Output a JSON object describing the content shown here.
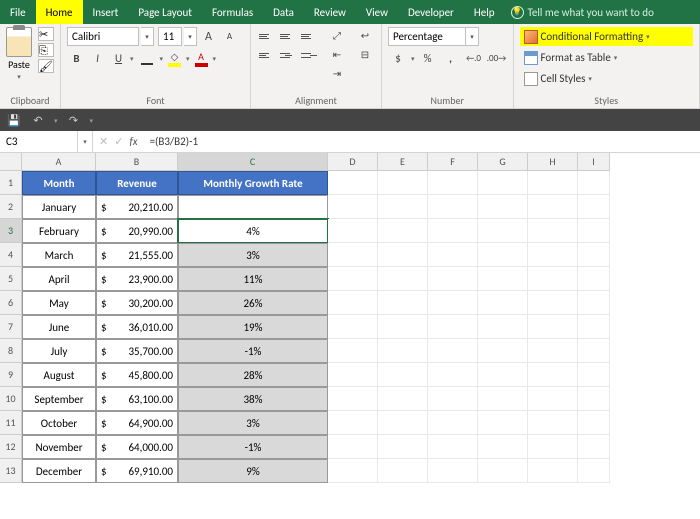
{
  "tabs": [
    "File",
    "Home",
    "Insert",
    "Page Layout",
    "Formulas",
    "Data",
    "Review",
    "View",
    "Developer",
    "Help"
  ],
  "active_tab": "Home",
  "tell_me": "Tell me what you want to do",
  "ribbon": {
    "clipboard": {
      "paste": "Paste",
      "label": "Clipboard"
    },
    "font": {
      "name": "Calibri",
      "size": "11",
      "inc": "A",
      "dec": "A",
      "bold": "B",
      "italic": "I",
      "underline": "U",
      "label": "Font"
    },
    "alignment": {
      "label": "Alignment"
    },
    "number": {
      "format": "Percentage",
      "currency": "$",
      "percent": "%",
      "comma": ",",
      "dec_inc": ".0",
      "dec_dec": ".00",
      "label": "Number"
    },
    "styles": {
      "cond": "Conditional Formatting",
      "table": "Format as Table",
      "cell": "Cell Styles",
      "label": "Styles"
    }
  },
  "name_box": "C3",
  "formula": "=(B3/B2)-1",
  "col_headers": [
    "A",
    "B",
    "C",
    "D",
    "E",
    "F",
    "G",
    "H",
    "I"
  ],
  "row_headers": [
    "1",
    "2",
    "3",
    "4",
    "5",
    "6",
    "7",
    "8",
    "9",
    "10",
    "11",
    "12",
    "13"
  ],
  "table": {
    "headers": [
      "Month",
      "Revenue",
      "Monthly Growth Rate"
    ],
    "currency": "$",
    "rows": [
      {
        "month": "January",
        "revenue": "20,210.00",
        "growth": ""
      },
      {
        "month": "February",
        "revenue": "20,990.00",
        "growth": "4%"
      },
      {
        "month": "March",
        "revenue": "21,555.00",
        "growth": "3%"
      },
      {
        "month": "April",
        "revenue": "23,900.00",
        "growth": "11%"
      },
      {
        "month": "May",
        "revenue": "30,200.00",
        "growth": "26%"
      },
      {
        "month": "June",
        "revenue": "36,010.00",
        "growth": "19%"
      },
      {
        "month": "July",
        "revenue": "35,700.00",
        "growth": "-1%"
      },
      {
        "month": "August",
        "revenue": "45,800.00",
        "growth": "28%"
      },
      {
        "month": "September",
        "revenue": "63,100.00",
        "growth": "38%"
      },
      {
        "month": "October",
        "revenue": "64,900.00",
        "growth": "3%"
      },
      {
        "month": "November",
        "revenue": "64,000.00",
        "growth": "-1%"
      },
      {
        "month": "December",
        "revenue": "69,910.00",
        "growth": "9%"
      }
    ],
    "active_row_index": 1
  },
  "colors": {
    "green": "#217346",
    "hl": "#ffff00",
    "header_blue": "#4472c4",
    "shade": "#d9d9d9",
    "grid": "#e8e8e8"
  }
}
